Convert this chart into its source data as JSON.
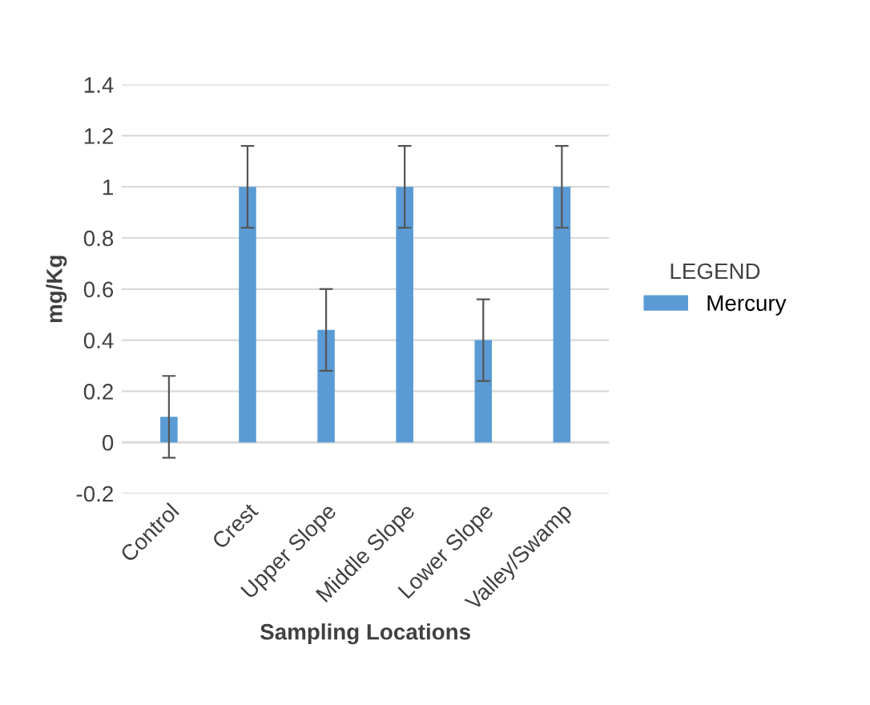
{
  "chart_data": {
    "type": "bar",
    "xlabel": "Sampling Locations",
    "ylabel": "mg/Kg",
    "legend_title": "LEGEND",
    "categories": [
      "Control",
      "Crest",
      "Upper Slope",
      "Middle Slope",
      "Lower Slope",
      "Valley/Swamp"
    ],
    "series": [
      {
        "name": "Mercury",
        "color": "#5b9bd5",
        "values": [
          0.1,
          1.0,
          0.44,
          1.0,
          0.4,
          1.0
        ],
        "errors": [
          0.16,
          0.16,
          0.16,
          0.16,
          0.16,
          0.16
        ]
      }
    ],
    "ylim": [
      -0.2,
      1.4
    ],
    "yticks": [
      -0.2,
      0,
      0.2,
      0.4,
      0.6,
      0.8,
      1,
      1.2,
      1.4
    ],
    "grid": "y",
    "legend": "right"
  }
}
